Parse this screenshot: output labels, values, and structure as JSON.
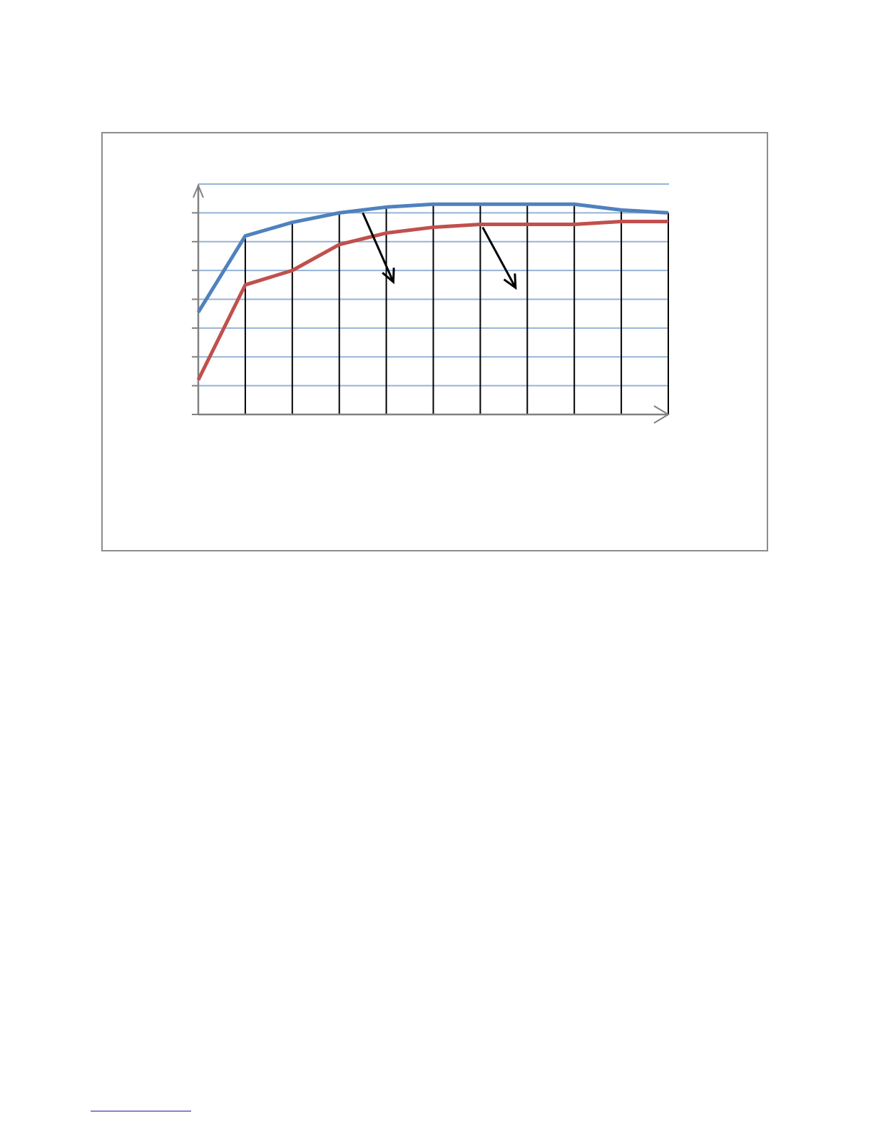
{
  "chart_data": {
    "type": "line",
    "title": "",
    "xlabel": "",
    "ylabel": "",
    "x": [
      0,
      1,
      2,
      3,
      4,
      5,
      6,
      7,
      8,
      9,
      10
    ],
    "ylim": [
      0,
      8
    ],
    "grid": true,
    "legend": "none",
    "series": [
      {
        "color": "#4f81bd",
        "values": [
          3.55,
          6.2,
          6.67,
          7.0,
          7.2,
          7.3,
          7.3,
          7.3,
          7.3,
          7.1,
          7.0
        ]
      },
      {
        "color": "#c0504d",
        "values": [
          1.2,
          4.5,
          5.0,
          5.9,
          6.3,
          6.5,
          6.6,
          6.6,
          6.6,
          6.7,
          6.7
        ]
      }
    ],
    "gridline_color": "#95b3d7",
    "axis_color": "#808080",
    "vertical_line_color": "#000000",
    "annotations": [
      {
        "type": "arrow",
        "from": [
          3.5,
          7.0
        ],
        "to": [
          4.15,
          4.6
        ],
        "color": "#000000"
      },
      {
        "type": "arrow",
        "from": [
          6.05,
          6.5
        ],
        "to": [
          6.75,
          4.4
        ],
        "color": "#000000"
      }
    ]
  }
}
